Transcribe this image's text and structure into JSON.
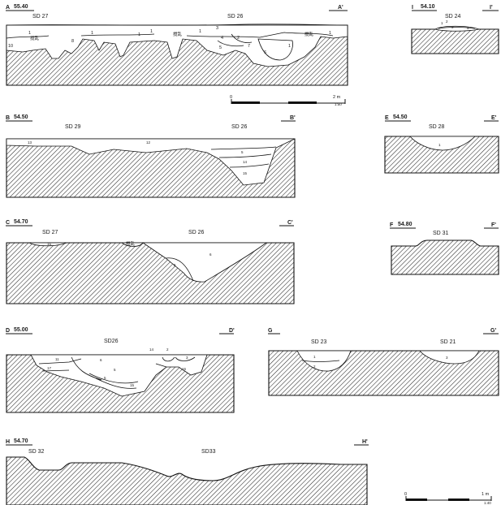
{
  "sections": [
    {
      "id": "A",
      "start": "A",
      "elevation": "55.40",
      "end": "A'",
      "features": [
        "SD 27",
        "SD 26"
      ],
      "layers": [
        "1",
        "1",
        "1",
        "1",
        "1",
        "1",
        "1",
        "2",
        "3",
        "4",
        "5",
        "6",
        "7",
        "8",
        "10"
      ],
      "disturbances": [
        "撹乱",
        "撹乱",
        "撹乱"
      ]
    },
    {
      "id": "I",
      "start": "I",
      "elevation": "54.10",
      "end": "I'",
      "features": [
        "SD 24"
      ],
      "layers": [
        "1",
        "2",
        "3",
        "4"
      ]
    },
    {
      "id": "B",
      "start": "B",
      "elevation": "54.50",
      "end": "B'",
      "features": [
        "SD 29",
        "SD 26"
      ],
      "layers": [
        "13",
        "12",
        "5",
        "14",
        "15"
      ]
    },
    {
      "id": "E",
      "start": "E",
      "elevation": "54.50",
      "end": "E'",
      "features": [
        "SD 28"
      ],
      "layers": [
        "1"
      ]
    },
    {
      "id": "C",
      "start": "C",
      "elevation": "54.70",
      "end": "C'",
      "features": [
        "SD 27",
        "SD 26"
      ],
      "layers": [
        "15",
        "6",
        "5"
      ],
      "disturbances": [
        "撹乱"
      ]
    },
    {
      "id": "F",
      "start": "F",
      "elevation": "54.80",
      "end": "F'",
      "features": [
        "SD 31"
      ],
      "layers": []
    },
    {
      "id": "D",
      "start": "D",
      "elevation": "55.00",
      "end": "D'",
      "features": [
        "SD26"
      ],
      "layers": [
        "11",
        "17",
        "6",
        "5",
        "5",
        "15",
        "14",
        "2",
        "3",
        "16"
      ]
    },
    {
      "id": "G",
      "start": "G",
      "elevation": "",
      "end": "G'",
      "features": [
        "SD 23",
        "SD 21"
      ],
      "layers": [
        "1",
        "2",
        "3"
      ]
    },
    {
      "id": "H",
      "start": "H",
      "elevation": "54.70",
      "end": "H'",
      "features": [
        "SD 32",
        "SD33"
      ],
      "layers": []
    }
  ],
  "scales": [
    {
      "zero": "0",
      "length": "2 m",
      "ratio": "1:50"
    },
    {
      "zero": "0",
      "length": "1 m",
      "ratio": "1:40"
    }
  ]
}
